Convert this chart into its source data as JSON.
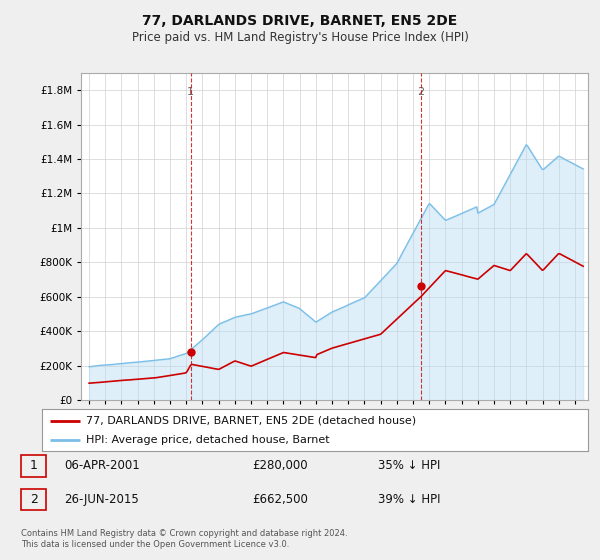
{
  "title": "77, DARLANDS DRIVE, BARNET, EN5 2DE",
  "subtitle": "Price paid vs. HM Land Registry's House Price Index (HPI)",
  "footer": "Contains HM Land Registry data © Crown copyright and database right 2024.\nThis data is licensed under the Open Government Licence v3.0.",
  "legend_line1": "77, DARLANDS DRIVE, BARNET, EN5 2DE (detached house)",
  "legend_line2": "HPI: Average price, detached house, Barnet",
  "transaction1_date": "06-APR-2001",
  "transaction1_price": "£280,000",
  "transaction1_hpi": "35% ↓ HPI",
  "transaction2_date": "26-JUN-2015",
  "transaction2_price": "£662,500",
  "transaction2_hpi": "39% ↓ HPI",
  "hpi_color": "#7bbfe8",
  "hpi_fill_color": "#b8dcf2",
  "sold_color": "#cc0000",
  "background_color": "#efefef",
  "plot_bg_color": "#ffffff",
  "ylim": [
    0,
    1900000
  ],
  "yticks": [
    0,
    200000,
    400000,
    600000,
    800000,
    1000000,
    1200000,
    1400000,
    1600000,
    1800000
  ],
  "marker1_year": 2001.27,
  "marker1_price": 280000,
  "marker2_year": 2015.48,
  "marker2_price": 662500,
  "vline1_year": 2001.27,
  "vline2_year": 2015.48
}
